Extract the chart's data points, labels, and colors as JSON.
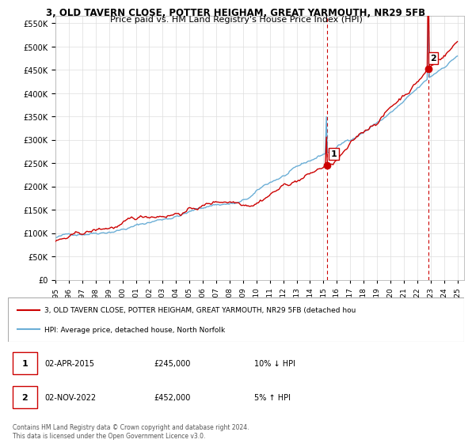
{
  "title_line1": "3, OLD TAVERN CLOSE, POTTER HEIGHAM, GREAT YARMOUTH, NR29 5FB",
  "title_line2": "Price paid vs. HM Land Registry's House Price Index (HPI)",
  "ylim": [
    0,
    565000
  ],
  "xlim_start": 1995.0,
  "xlim_end": 2025.5,
  "sale1_date": 2015.25,
  "sale1_price": 245000,
  "sale1_label": "1",
  "sale2_date": 2022.83,
  "sale2_price": 452000,
  "sale2_label": "2",
  "legend_line1": "3, OLD TAVERN CLOSE, POTTER HEIGHAM, GREAT YARMOUTH, NR29 5FB (detached hou",
  "legend_line2": "HPI: Average price, detached house, North Norfolk",
  "footer": "Contains HM Land Registry data © Crown copyright and database right 2024.\nThis data is licensed under the Open Government Licence v3.0.",
  "hpi_color": "#6baed6",
  "price_color": "#cc0000",
  "vline_color": "#cc0000",
  "background_color": "#ffffff",
  "grid_color": "#dddddd"
}
